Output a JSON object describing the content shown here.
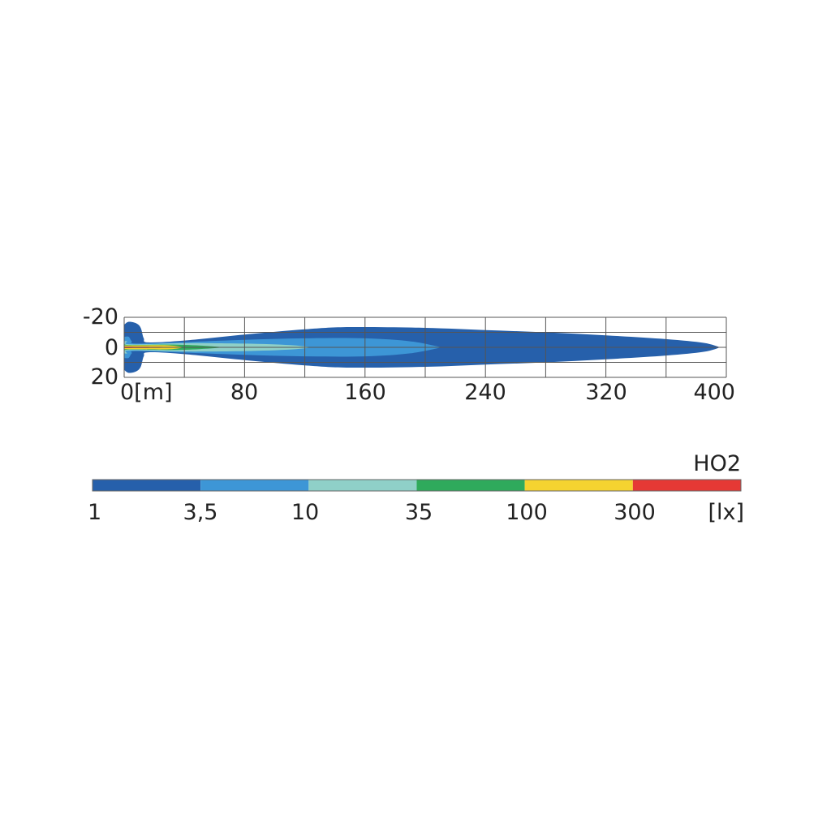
{
  "chart_data": {
    "type": "heatmap",
    "subtype": "isolux contour plot",
    "xlabel": "0[m]",
    "x_ticks": [
      0,
      80,
      160,
      240,
      320,
      400
    ],
    "x_tick_labels": [
      "0[m]",
      "80",
      "160",
      "240",
      "320",
      "400"
    ],
    "y_ticks": [
      -20,
      0,
      20
    ],
    "y_tick_labels": [
      "-20",
      "0",
      "20"
    ],
    "xlim": [
      0,
      400
    ],
    "ylim": [
      -20,
      20
    ],
    "grid": true,
    "grid_x_step": 40,
    "grid_y_step": 10,
    "contours": [
      {
        "level": 1,
        "color": "#2660ab",
        "profile": [
          [
            0,
            15
          ],
          [
            3,
            17
          ],
          [
            8,
            16
          ],
          [
            11,
            13
          ],
          [
            13,
            6
          ],
          [
            16,
            3.3
          ],
          [
            40,
            4.5
          ],
          [
            80,
            8.5
          ],
          [
            120,
            12
          ],
          [
            150,
            13.5
          ],
          [
            200,
            13
          ],
          [
            240,
            11.5
          ],
          [
            280,
            10
          ],
          [
            320,
            8
          ],
          [
            360,
            5.5
          ],
          [
            385,
            3
          ],
          [
            396,
            0
          ]
        ]
      },
      {
        "level": 3.5,
        "color": "#3d96d6",
        "profile": [
          [
            0,
            7
          ],
          [
            3,
            7
          ],
          [
            5,
            4
          ],
          [
            8,
            2.5
          ],
          [
            40,
            3.5
          ],
          [
            80,
            5
          ],
          [
            120,
            6
          ],
          [
            160,
            6
          ],
          [
            190,
            4
          ],
          [
            211,
            0
          ]
        ]
      },
      {
        "level": 10,
        "color": "#8fd0c8",
        "profile": [
          [
            0,
            4
          ],
          [
            2,
            4
          ],
          [
            4,
            2
          ],
          [
            40,
            2.8
          ],
          [
            80,
            2.5
          ],
          [
            110,
            1.5
          ],
          [
            125,
            0
          ]
        ]
      },
      {
        "level": 35,
        "color": "#2faa5c",
        "profile": [
          [
            0,
            2
          ],
          [
            5,
            1.5
          ],
          [
            30,
            1.8
          ],
          [
            50,
            1.2
          ],
          [
            67,
            0
          ]
        ]
      },
      {
        "level": 100,
        "color": "#f5d330",
        "profile": [
          [
            0,
            1.2
          ],
          [
            10,
            1.3
          ],
          [
            30,
            1.3
          ],
          [
            40,
            0
          ]
        ]
      },
      {
        "level": 300,
        "color": "#e53935",
        "profile": [
          [
            0,
            0.5
          ],
          [
            27,
            0.3
          ],
          [
            28,
            0
          ]
        ]
      }
    ],
    "legend": {
      "title": "HO2",
      "unit": "[lx]",
      "levels": [
        "1",
        "3,5",
        "10",
        "35",
        "100",
        "300"
      ],
      "colors": [
        "#2660ab",
        "#3d96d6",
        "#8fd0c8",
        "#2faa5c",
        "#f5d330",
        "#e53935"
      ]
    }
  }
}
